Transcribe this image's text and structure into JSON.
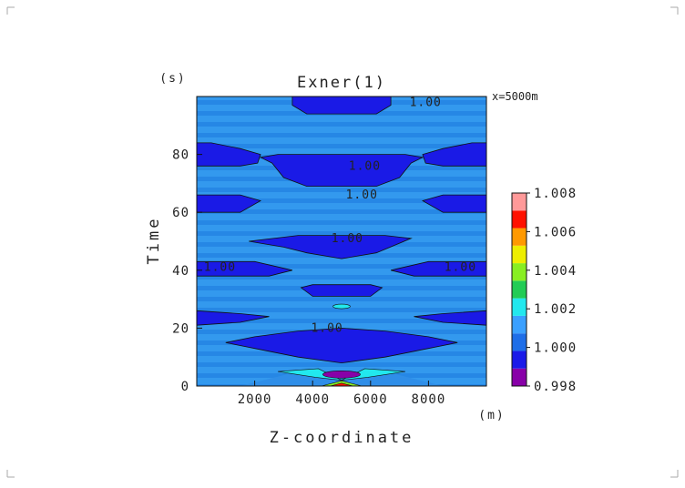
{
  "chart_data": {
    "type": "heatmap",
    "title": "Exner(1)",
    "annotation": "x=5000m",
    "xlabel": "Z-coordinate",
    "xunit": "(m)",
    "ylabel": "Time",
    "yunit": "(s)",
    "xlim": [
      0,
      10000
    ],
    "ylim": [
      0,
      100
    ],
    "xticks": [
      2000,
      4000,
      6000,
      8000
    ],
    "yticks": [
      0,
      20,
      40,
      60,
      80
    ],
    "contour_labels": [
      {
        "text": "1.00",
        "x": 7900,
        "y": 98
      },
      {
        "text": "1.00",
        "x": 5800,
        "y": 76
      },
      {
        "text": "1.00",
        "x": 5700,
        "y": 66
      },
      {
        "text": "1.00",
        "x": 5200,
        "y": 51
      },
      {
        "text": "1.00",
        "x": 800,
        "y": 41
      },
      {
        "text": "1.00",
        "x": 9100,
        "y": 41
      },
      {
        "text": "1.00",
        "x": 4500,
        "y": 20
      }
    ],
    "colorbar": {
      "levels": [
        "0.998",
        "1.000",
        "1.002",
        "1.004",
        "1.006",
        "1.008"
      ],
      "colors": [
        "#8800a8",
        "#1a1ae8",
        "#1e6ee8",
        "#3aa0ff",
        "#22e8ee",
        "#22cc55",
        "#88ee22",
        "#eeee00",
        "#ff9900",
        "#ff1100",
        "#ff9999"
      ]
    },
    "fill_colors": {
      "background": "#3399ee",
      "band_dark": "#1e7be0",
      "low": "#1a1ae6",
      "lowest": "#8800a8",
      "high": "#22e8ee",
      "peak": "#ff1100"
    }
  }
}
